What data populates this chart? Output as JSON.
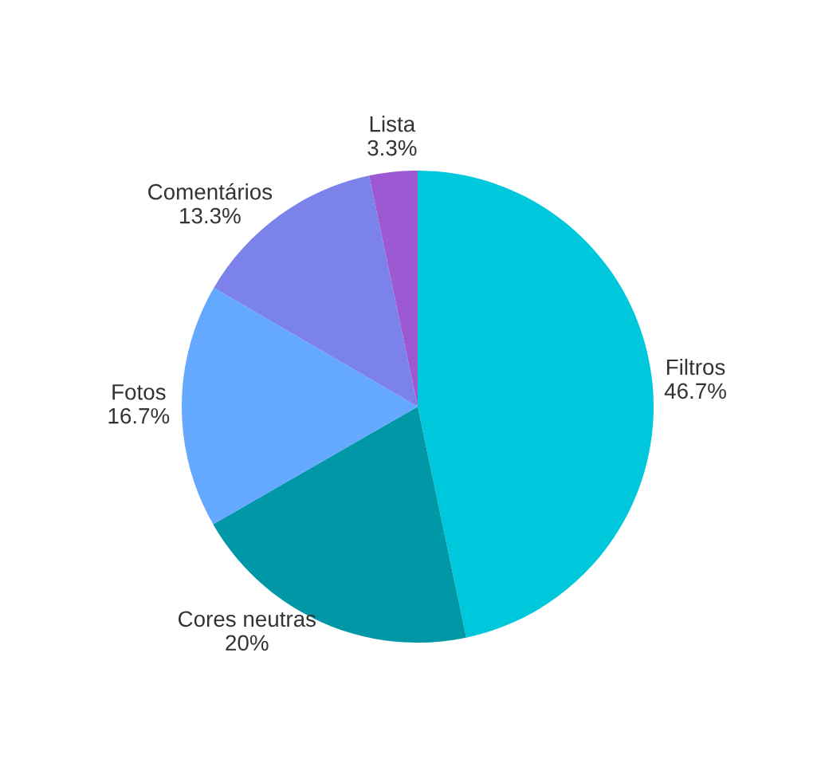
{
  "chart_data": {
    "type": "pie",
    "categories": [
      "Filtros",
      "Cores neutras",
      "Fotos",
      "Comentários",
      "Lista"
    ],
    "values": [
      46.7,
      20,
      16.7,
      13.3,
      3.3
    ],
    "value_labels": [
      "46.7%",
      "20%",
      "16.7%",
      "13.3%",
      "3.3%"
    ],
    "colors": [
      "#00c8dc",
      "#0097a7",
      "#64a8ff",
      "#7b83eb",
      "#9c59d1"
    ]
  }
}
